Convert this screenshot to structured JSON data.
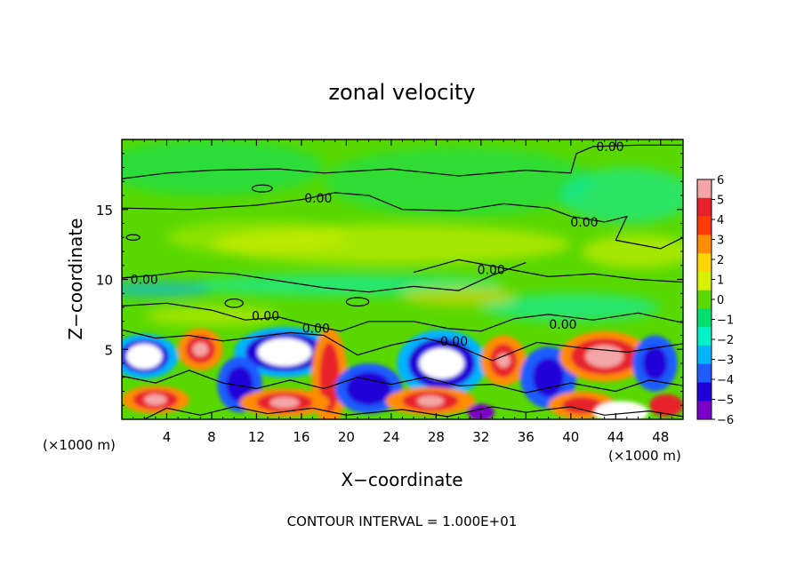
{
  "chart_data": {
    "type": "heatmap",
    "title": "zonal velocity",
    "xlabel": "X−coordinate",
    "ylabel": "Z−coordinate",
    "x_unit_left": "(×1000 m)",
    "x_unit_right": "(×1000 m)",
    "xlim": [
      0,
      50
    ],
    "ylim": [
      0,
      20
    ],
    "x_ticks": [
      4,
      8,
      12,
      16,
      20,
      24,
      28,
      32,
      36,
      40,
      44,
      48
    ],
    "y_ticks": [
      5,
      10,
      15
    ],
    "colorbar": {
      "range": [
        -6,
        6
      ],
      "ticks": [
        6,
        5,
        4,
        3,
        2,
        1,
        0,
        -1,
        -2,
        -3,
        -4,
        -5,
        -6
      ],
      "tick_labels": [
        "6",
        "5",
        "4",
        "3",
        "2",
        "1",
        "0",
        "−1",
        "−2",
        "−3",
        "−4",
        "−5",
        "−6"
      ],
      "colors": [
        "#f4a6a6",
        "#e8202a",
        "#ff3a00",
        "#ff8c00",
        "#ffd400",
        "#d8f000",
        "#58d800",
        "#00e070",
        "#00f0c8",
        "#00b4ff",
        "#1e5cff",
        "#2000d8",
        "#7a00c8"
      ]
    },
    "contour_labels": [
      {
        "text": "0.00",
        "x": 43.5,
        "z": 19.5
      },
      {
        "text": "0.00",
        "x": 17.5,
        "z": 15.8
      },
      {
        "text": "0.00",
        "x": 41.2,
        "z": 14.1
      },
      {
        "text": "0.00",
        "x": 2.0,
        "z": 10.0
      },
      {
        "text": "0.00",
        "x": 32.9,
        "z": 10.7
      },
      {
        "text": "0.00",
        "x": 12.8,
        "z": 7.4
      },
      {
        "text": "0.00",
        "x": 17.3,
        "z": 6.5
      },
      {
        "text": "0.00",
        "x": 29.6,
        "z": 5.6
      },
      {
        "text": "0.00",
        "x": 39.3,
        "z": 6.8
      }
    ],
    "footer": "CONTOUR INTERVAL = 1.000E+01"
  }
}
